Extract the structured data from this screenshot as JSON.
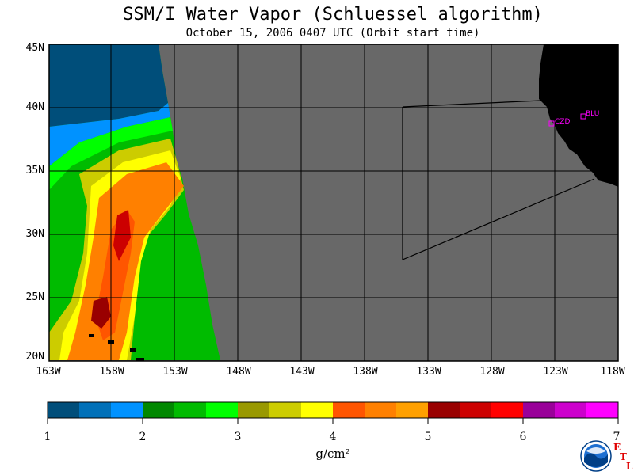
{
  "title": "SSM/I Water Vapor (Schluessel algorithm)",
  "subtitle": "October 15, 2006  0407 UTC  (Orbit start time)",
  "map": {
    "lat_labels": [
      "45N",
      "40N",
      "35N",
      "30N",
      "25N",
      "20N"
    ],
    "lon_labels": [
      "163W",
      "158W",
      "153W",
      "148W",
      "143W",
      "138W",
      "133W",
      "128W",
      "123W",
      "118W"
    ],
    "stations": [
      {
        "code": "CZD"
      },
      {
        "code": "BLU"
      }
    ],
    "colors": {
      "land": "#000000",
      "no_data": "#686868",
      "station": "#ff00ff"
    }
  },
  "colorbar": {
    "ticks": [
      "1",
      "2",
      "3",
      "4",
      "5",
      "6",
      "7"
    ],
    "units": "g/cm²",
    "colors": [
      "#004e7a",
      "#0070b8",
      "#0092ff",
      "#008800",
      "#00bb00",
      "#00ff00",
      "#999900",
      "#cccc00",
      "#ffff00",
      "#ff5500",
      "#ff8000",
      "#ffa000",
      "#990000",
      "#cc0000",
      "#ff0000",
      "#990099",
      "#cc00cc",
      "#ff00ff"
    ]
  },
  "logos": {
    "noaa": "NOAA",
    "etl": "ETL"
  }
}
